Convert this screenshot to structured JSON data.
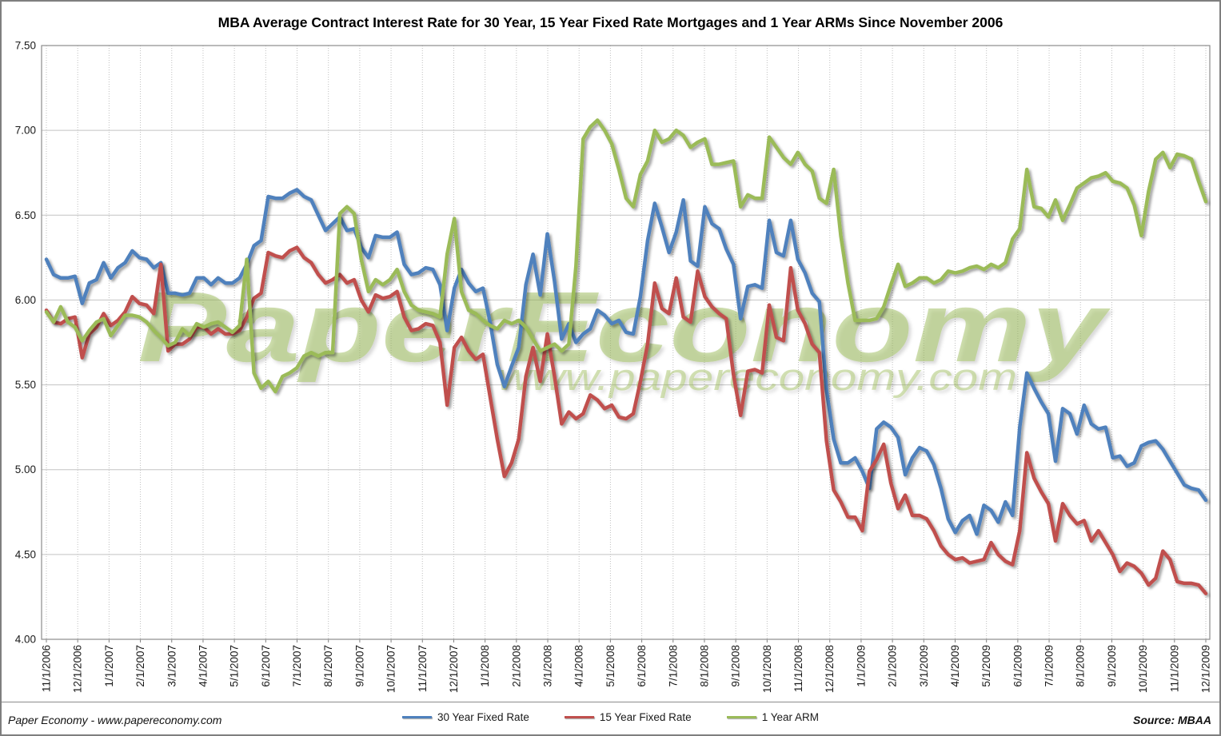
{
  "title": "MBA Average Contract Interest Rate for 30 Year, 15 Year Fixed Rate Mortgages and 1 Year ARMs Since November 2006",
  "watermark": {
    "line1": "PaperEconomy",
    "line2": "www.papereconomy.com",
    "color": "#9BBB59"
  },
  "footer": {
    "left": "Paper Economy - www.papereconomy.com",
    "right": "Source: MBAA"
  },
  "y_axis": {
    "labels": [
      "7.50",
      "7.00",
      "6.50",
      "6.00",
      "5.50",
      "5.00",
      "4.50",
      "4.00"
    ],
    "min": 4.0,
    "max": 7.5,
    "step": 0.5
  },
  "x_axis": {
    "labels": [
      "11/1/2006",
      "12/1/2006",
      "1/1/2007",
      "2/1/2007",
      "3/1/2007",
      "4/1/2007",
      "5/1/2007",
      "6/1/2007",
      "7/1/2007",
      "8/1/2007",
      "9/1/2007",
      "10/1/2007",
      "11/1/2007",
      "12/1/2007",
      "1/1/2008",
      "2/1/2008",
      "3/1/2008",
      "4/1/2008",
      "5/1/2008",
      "6/1/2008",
      "7/1/2008",
      "8/1/2008",
      "9/1/2008",
      "10/1/2008",
      "11/1/2008",
      "12/1/2008",
      "1/1/2009",
      "2/1/2009",
      "3/1/2009",
      "4/1/2009",
      "5/1/2009",
      "6/1/2009",
      "7/1/2009",
      "8/1/2009",
      "9/1/2009",
      "10/1/2009",
      "11/1/2009",
      "12/1/2009"
    ]
  },
  "chart_data": {
    "type": "line",
    "title": "MBA Average Contract Interest Rate for 30 Year, 15 Year Fixed Rate Mortgages and 1 Year ARMs Since November 2006",
    "frequency": "weekly",
    "x_start": "11/1/2006",
    "x_end": "12/1/2009",
    "ylim": [
      4.0,
      7.5
    ],
    "y_step": 0.5,
    "grid": "horizontal-solid, vertical-dotted-monthly",
    "legend_position": "bottom",
    "series": [
      {
        "name": "30 Year Fixed Rate",
        "color": "#4F81BD",
        "values": [
          6.24,
          6.15,
          6.13,
          6.13,
          6.14,
          5.98,
          6.1,
          6.12,
          6.22,
          6.13,
          6.19,
          6.22,
          6.29,
          6.25,
          6.24,
          6.19,
          6.22,
          6.04,
          6.04,
          6.03,
          6.04,
          6.13,
          6.13,
          6.09,
          6.13,
          6.1,
          6.1,
          6.13,
          6.21,
          6.32,
          6.35,
          6.61,
          6.6,
          6.6,
          6.63,
          6.65,
          6.61,
          6.59,
          6.5,
          6.41,
          6.45,
          6.49,
          6.41,
          6.42,
          6.31,
          6.25,
          6.38,
          6.37,
          6.37,
          6.4,
          6.21,
          6.15,
          6.16,
          6.19,
          6.18,
          6.09,
          5.82,
          6.07,
          6.18,
          6.1,
          6.05,
          6.07,
          5.87,
          5.62,
          5.49,
          5.61,
          5.72,
          6.09,
          6.27,
          6.03,
          6.39,
          6.11,
          5.77,
          5.86,
          5.75,
          5.8,
          5.83,
          5.94,
          5.91,
          5.86,
          5.88,
          5.81,
          5.8,
          6.02,
          6.35,
          6.57,
          6.43,
          6.28,
          6.4,
          6.59,
          6.23,
          6.2,
          6.55,
          6.45,
          6.42,
          6.3,
          6.21,
          5.89,
          6.08,
          6.09,
          6.07,
          6.47,
          6.28,
          6.26,
          6.47,
          6.24,
          6.16,
          6.04,
          5.99,
          5.47,
          5.18,
          5.04,
          5.04,
          5.07,
          4.99,
          4.89,
          5.24,
          5.28,
          5.25,
          5.19,
          4.97,
          5.07,
          5.13,
          5.11,
          5.03,
          4.89,
          4.71,
          4.63,
          4.7,
          4.73,
          4.62,
          4.79,
          4.76,
          4.69,
          4.81,
          4.73,
          5.25,
          5.57,
          5.48,
          5.4,
          5.33,
          5.05,
          5.36,
          5.33,
          5.21,
          5.38,
          5.27,
          5.24,
          5.25,
          5.07,
          5.08,
          5.02,
          5.04,
          5.14,
          5.16,
          5.17,
          5.12,
          5.05,
          4.98,
          4.91,
          4.89,
          4.88,
          4.82
        ]
      },
      {
        "name": "15 Year Fixed Rate",
        "color": "#C0504D",
        "values": [
          5.94,
          5.87,
          5.86,
          5.89,
          5.9,
          5.66,
          5.8,
          5.84,
          5.92,
          5.85,
          5.88,
          5.93,
          6.02,
          5.98,
          5.97,
          5.92,
          6.21,
          5.7,
          5.74,
          5.74,
          5.77,
          5.84,
          5.84,
          5.8,
          5.83,
          5.8,
          5.8,
          5.82,
          5.9,
          6.01,
          6.04,
          6.28,
          6.26,
          6.25,
          6.29,
          6.31,
          6.25,
          6.22,
          6.15,
          6.1,
          6.12,
          6.15,
          6.1,
          6.12,
          6.0,
          5.93,
          6.03,
          6.01,
          6.02,
          6.05,
          5.9,
          5.82,
          5.83,
          5.86,
          5.85,
          5.75,
          5.38,
          5.72,
          5.78,
          5.7,
          5.65,
          5.68,
          5.43,
          5.18,
          4.96,
          5.04,
          5.18,
          5.55,
          5.72,
          5.52,
          5.8,
          5.55,
          5.27,
          5.34,
          5.3,
          5.33,
          5.44,
          5.41,
          5.36,
          5.38,
          5.31,
          5.3,
          5.33,
          5.52,
          5.74,
          6.1,
          5.95,
          5.92,
          6.13,
          5.9,
          5.87,
          6.17,
          6.02,
          5.96,
          5.92,
          5.89,
          5.56,
          5.32,
          5.58,
          5.59,
          5.57,
          5.97,
          5.78,
          5.76,
          6.19,
          5.94,
          5.86,
          5.74,
          5.69,
          5.17,
          4.88,
          4.81,
          4.72,
          4.72,
          4.64,
          4.99,
          5.06,
          5.15,
          4.92,
          4.77,
          4.85,
          4.73,
          4.73,
          4.71,
          4.64,
          4.55,
          4.5,
          4.47,
          4.48,
          4.45,
          4.46,
          4.47,
          4.57,
          4.5,
          4.46,
          4.44,
          4.64,
          5.1,
          4.95,
          4.87,
          4.8,
          4.58,
          4.8,
          4.73,
          4.68,
          4.7,
          4.58,
          4.64,
          4.57,
          4.5,
          4.4,
          4.45,
          4.43,
          4.39,
          4.32,
          4.36,
          4.52,
          4.47,
          4.34,
          4.33,
          4.33,
          4.32,
          4.27
        ]
      },
      {
        "name": "1 Year ARM",
        "color": "#9BBB59",
        "values": [
          5.93,
          5.87,
          5.96,
          5.87,
          5.84,
          5.76,
          5.82,
          5.87,
          5.89,
          5.79,
          5.85,
          5.91,
          5.91,
          5.9,
          5.87,
          5.82,
          5.78,
          5.73,
          5.75,
          5.83,
          5.79,
          5.86,
          5.84,
          5.86,
          5.87,
          5.84,
          5.81,
          5.85,
          6.24,
          5.57,
          5.48,
          5.52,
          5.46,
          5.55,
          5.57,
          5.6,
          5.67,
          5.69,
          5.67,
          5.69,
          5.69,
          6.51,
          6.55,
          6.51,
          6.24,
          6.05,
          6.12,
          6.09,
          6.12,
          6.18,
          6.05,
          5.97,
          5.94,
          5.93,
          5.92,
          5.9,
          6.27,
          6.48,
          6.05,
          5.94,
          5.92,
          5.88,
          5.85,
          5.83,
          5.88,
          5.86,
          5.88,
          5.84,
          5.77,
          5.7,
          5.72,
          5.74,
          5.7,
          5.74,
          6.2,
          6.95,
          7.02,
          7.06,
          7.0,
          6.92,
          6.77,
          6.6,
          6.55,
          6.74,
          6.82,
          7.0,
          6.93,
          6.95,
          7.0,
          6.97,
          6.9,
          6.93,
          6.95,
          6.8,
          6.8,
          6.81,
          6.82,
          6.55,
          6.62,
          6.6,
          6.6,
          6.96,
          6.9,
          6.84,
          6.8,
          6.87,
          6.8,
          6.76,
          6.6,
          6.57,
          6.77,
          6.38,
          6.1,
          5.88,
          5.88,
          5.88,
          5.89,
          5.96,
          6.09,
          6.21,
          6.08,
          6.1,
          6.13,
          6.13,
          6.1,
          6.12,
          6.17,
          6.16,
          6.17,
          6.19,
          6.2,
          6.18,
          6.21,
          6.19,
          6.22,
          6.36,
          6.42,
          6.77,
          6.55,
          6.54,
          6.49,
          6.59,
          6.47,
          6.56,
          6.66,
          6.69,
          6.72,
          6.73,
          6.75,
          6.7,
          6.69,
          6.66,
          6.56,
          6.38,
          6.64,
          6.83,
          6.87,
          6.78,
          6.86,
          6.85,
          6.83,
          6.7,
          6.58
        ]
      }
    ]
  }
}
